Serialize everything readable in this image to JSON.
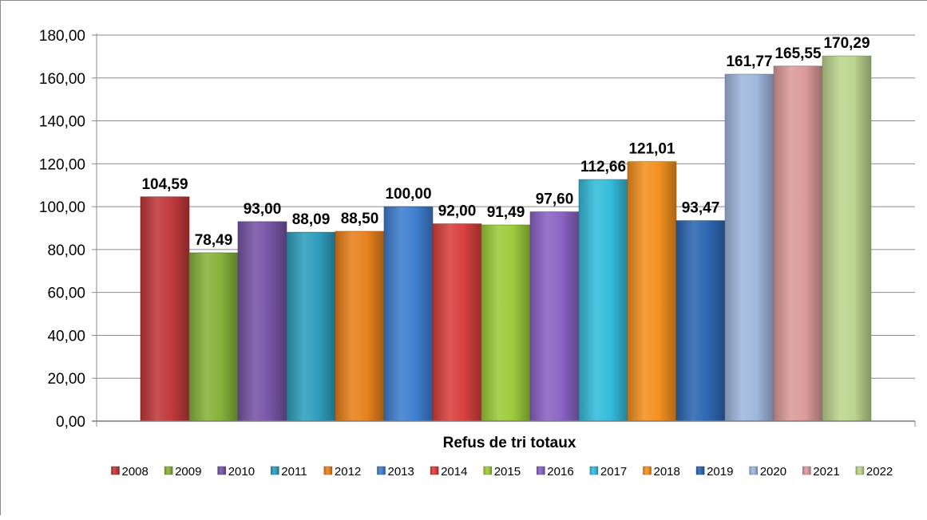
{
  "chart_data": {
    "type": "bar",
    "title": "",
    "xlabel": "",
    "ylabel": "",
    "category": "Refus de tri totaux",
    "ylim": [
      0,
      180
    ],
    "ytick_step": 20,
    "y_tick_labels": [
      "0,00",
      "20,00",
      "40,00",
      "60,00",
      "80,00",
      "100,00",
      "120,00",
      "140,00",
      "160,00",
      "180,00"
    ],
    "grid": true,
    "legend_position": "bottom",
    "series": [
      {
        "name": "2008",
        "value": 104.59,
        "label": "104,59",
        "color": "#c0393b"
      },
      {
        "name": "2009",
        "value": 78.49,
        "label": "78,49",
        "color": "#86b33a"
      },
      {
        "name": "2010",
        "value": 93.0,
        "label": "93,00",
        "color": "#7656a6"
      },
      {
        "name": "2011",
        "value": 88.09,
        "label": "88,09",
        "color": "#2f9fbd"
      },
      {
        "name": "2012",
        "value": 88.5,
        "label": "88,50",
        "color": "#e8821e"
      },
      {
        "name": "2013",
        "value": 100.0,
        "label": "100,00",
        "color": "#3f7fd0"
      },
      {
        "name": "2014",
        "value": 92.0,
        "label": "92,00",
        "color": "#d9403f"
      },
      {
        "name": "2015",
        "value": 91.49,
        "label": "91,49",
        "color": "#9ccc3c"
      },
      {
        "name": "2016",
        "value": 97.6,
        "label": "97,60",
        "color": "#8a64c4"
      },
      {
        "name": "2017",
        "value": 112.66,
        "label": "112,66",
        "color": "#35bcdc"
      },
      {
        "name": "2018",
        "value": 121.01,
        "label": "121,01",
        "color": "#f4911f"
      },
      {
        "name": "2019",
        "value": 93.47,
        "label": "93,47",
        "color": "#2d67b2"
      },
      {
        "name": "2020",
        "value": 161.77,
        "label": "161,77",
        "color": "#9fb7dd"
      },
      {
        "name": "2021",
        "value": 165.55,
        "label": "165,55",
        "color": "#dc9b9a"
      },
      {
        "name": "2022",
        "value": 170.29,
        "label": "170,29",
        "color": "#bcd58f"
      }
    ]
  }
}
